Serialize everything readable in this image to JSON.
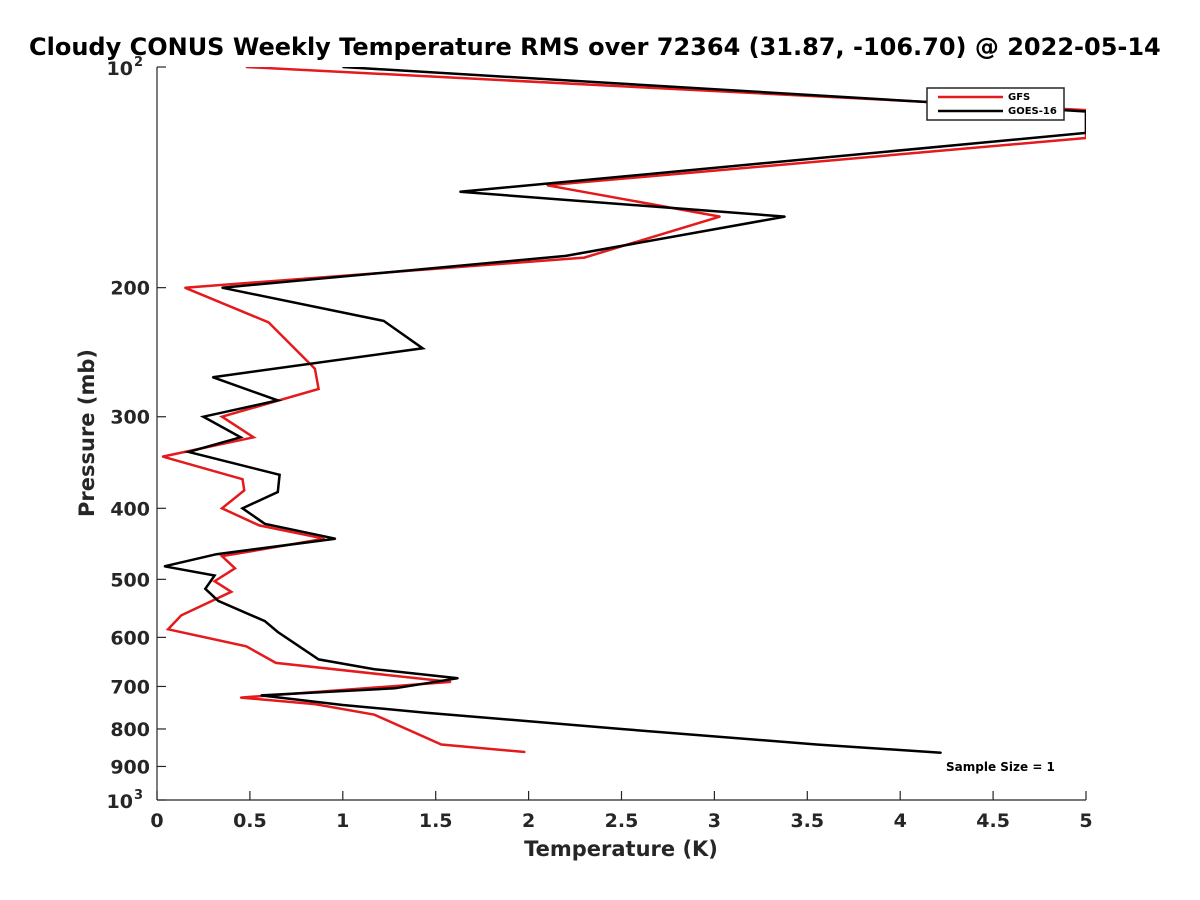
{
  "chart_data": {
    "type": "line",
    "title": "Cloudy CONUS Weekly Temperature RMS over 72364 (31.87, -106.70) @ 2022-05-14",
    "xlabel": "Temperature (K)",
    "ylabel": "Pressure (mb)",
    "xlim": [
      0,
      5
    ],
    "ylim": [
      100,
      1000
    ],
    "y_scale": "log",
    "y_reversed": true,
    "grid": false,
    "legend_position": "top-right",
    "x_ticks": [
      0,
      0.5,
      1,
      1.5,
      2,
      2.5,
      3,
      3.5,
      4,
      4.5,
      5
    ],
    "x_tick_labels": [
      "0",
      "0.5",
      "1",
      "1.5",
      "2",
      "2.5",
      "3",
      "3.5",
      "4",
      "4.5",
      "5"
    ],
    "y_ticks": [
      200,
      300,
      400,
      500,
      600,
      700,
      800,
      900
    ],
    "y_tick_labels": [
      "200",
      "300",
      "400",
      "500",
      "600",
      "700",
      "800",
      "900"
    ],
    "y_tick_power": [
      {
        "value": 100,
        "base": "10",
        "exponent": "2"
      },
      {
        "value": 1000,
        "base": "10",
        "exponent": "3"
      }
    ],
    "series": [
      {
        "name": "GFS",
        "color": "#e41a1c",
        "points": [
          [
            0.48,
            100
          ],
          [
            5.0,
            114.5
          ],
          [
            5.0,
            125
          ],
          [
            2.1,
            145
          ],
          [
            3.03,
            160
          ],
          [
            2.3,
            182
          ],
          [
            0.15,
            200
          ],
          [
            0.6,
            223
          ],
          [
            0.85,
            258
          ],
          [
            0.87,
            275
          ],
          [
            0.35,
            300
          ],
          [
            0.52,
            320
          ],
          [
            0.03,
            340
          ],
          [
            0.46,
            365
          ],
          [
            0.47,
            378
          ],
          [
            0.35,
            400
          ],
          [
            0.55,
            422
          ],
          [
            0.9,
            440
          ],
          [
            0.35,
            465
          ],
          [
            0.42,
            483
          ],
          [
            0.31,
            503
          ],
          [
            0.4,
            520
          ],
          [
            0.13,
            560
          ],
          [
            0.06,
            585
          ],
          [
            0.48,
            617
          ],
          [
            0.64,
            650
          ],
          [
            1.58,
            690
          ],
          [
            0.45,
            725
          ],
          [
            0.85,
            740
          ],
          [
            1.17,
            765
          ],
          [
            1.53,
            840
          ],
          [
            1.98,
            860
          ]
        ]
      },
      {
        "name": "GOES-16",
        "color": "#000000",
        "points": [
          [
            1.0,
            100
          ],
          [
            5.0,
            115
          ],
          [
            5.0,
            123
          ],
          [
            1.63,
            148
          ],
          [
            3.38,
            160
          ],
          [
            2.2,
            181
          ],
          [
            0.35,
            200
          ],
          [
            1.22,
            222
          ],
          [
            1.43,
            242
          ],
          [
            0.3,
            265
          ],
          [
            0.65,
            285
          ],
          [
            0.25,
            300
          ],
          [
            0.45,
            320
          ],
          [
            0.17,
            335
          ],
          [
            0.66,
            360
          ],
          [
            0.65,
            380
          ],
          [
            0.46,
            400
          ],
          [
            0.58,
            420
          ],
          [
            0.96,
            440
          ],
          [
            0.32,
            462
          ],
          [
            0.04,
            480
          ],
          [
            0.31,
            494
          ],
          [
            0.26,
            515
          ],
          [
            0.33,
            535
          ],
          [
            0.58,
            570
          ],
          [
            0.65,
            590
          ],
          [
            0.87,
            643
          ],
          [
            1.17,
            663
          ],
          [
            1.62,
            682
          ],
          [
            1.28,
            704
          ],
          [
            0.56,
            720
          ],
          [
            1.0,
            742
          ],
          [
            1.44,
            760
          ],
          [
            2.5,
            800
          ],
          [
            3.55,
            840
          ],
          [
            4.22,
            862
          ]
        ]
      }
    ],
    "annotations": [
      {
        "text": "Sample Size = 1",
        "position": "bottom-right"
      }
    ]
  }
}
